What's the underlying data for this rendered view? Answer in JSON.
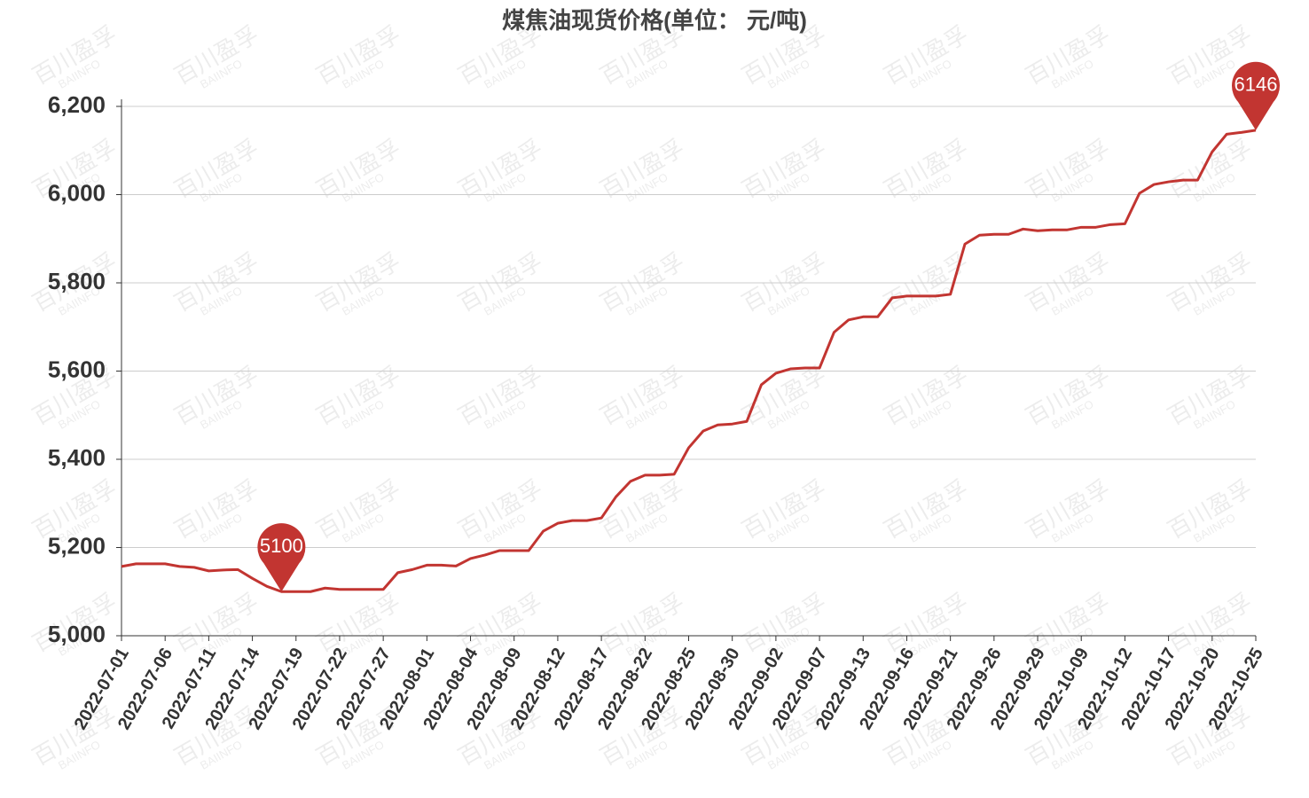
{
  "chart_data": {
    "type": "line",
    "title": "煤焦油现货价格(单位：  元/吨)",
    "watermark": {
      "text": "百川盈孚",
      "subtext": "BAIINFO"
    },
    "categories": [
      "2022-07-01",
      null,
      null,
      "2022-07-06",
      null,
      null,
      "2022-07-11",
      null,
      null,
      "2022-07-14",
      null,
      null,
      "2022-07-19",
      null,
      null,
      "2022-07-22",
      null,
      null,
      "2022-07-27",
      null,
      null,
      "2022-08-01",
      null,
      null,
      "2022-08-04",
      null,
      null,
      "2022-08-09",
      null,
      null,
      "2022-08-12",
      null,
      null,
      "2022-08-17",
      null,
      null,
      "2022-08-22",
      null,
      null,
      "2022-08-25",
      null,
      null,
      "2022-08-30",
      null,
      null,
      "2022-09-02",
      null,
      null,
      "2022-09-07",
      null,
      null,
      "2022-09-13",
      null,
      null,
      "2022-09-16",
      null,
      null,
      "2022-09-21",
      null,
      null,
      "2022-09-26",
      null,
      null,
      "2022-09-29",
      null,
      null,
      "2022-10-09",
      null,
      null,
      "2022-10-12",
      null,
      null,
      "2022-10-17",
      null,
      null,
      "2022-10-20",
      null,
      null,
      "2022-10-25"
    ],
    "series": [
      {
        "name": "煤焦油",
        "color": "#c23531",
        "values": [
          5157,
          5163,
          5163,
          5163,
          5157,
          5155,
          5147,
          5149,
          5150,
          5130,
          5112,
          5100,
          5100,
          5100,
          5108,
          5105,
          5105,
          5105,
          5105,
          5143,
          5150,
          5160,
          5160,
          5158,
          5175,
          5183,
          5193,
          5193,
          5193,
          5237,
          5255,
          5261,
          5261,
          5267,
          5315,
          5350,
          5364,
          5364,
          5366,
          5426,
          5464,
          5478,
          5480,
          5486,
          5569,
          5595,
          5605,
          5607,
          5607,
          5688,
          5716,
          5723,
          5723,
          5766,
          5770,
          5770,
          5770,
          5774,
          5888,
          5908,
          5910,
          5910,
          5922,
          5918,
          5920,
          5920,
          5926,
          5926,
          5932,
          5934,
          6003,
          6023,
          6029,
          6033,
          6033,
          6097,
          6137,
          6141,
          6146
        ]
      }
    ],
    "mark_points": [
      "min",
      "max"
    ],
    "ylim": [
      5000,
      6200
    ],
    "yticks": [
      {
        "value": 5000,
        "label": "5,000"
      },
      {
        "value": 5200,
        "label": "5,200"
      },
      {
        "value": 5400,
        "label": "5,400"
      },
      {
        "value": 5600,
        "label": "5,600"
      },
      {
        "value": 5800,
        "label": "5,800"
      },
      {
        "value": 6000,
        "label": "6,000"
      },
      {
        "value": 6200,
        "label": "6,200"
      }
    ],
    "grid": true
  }
}
